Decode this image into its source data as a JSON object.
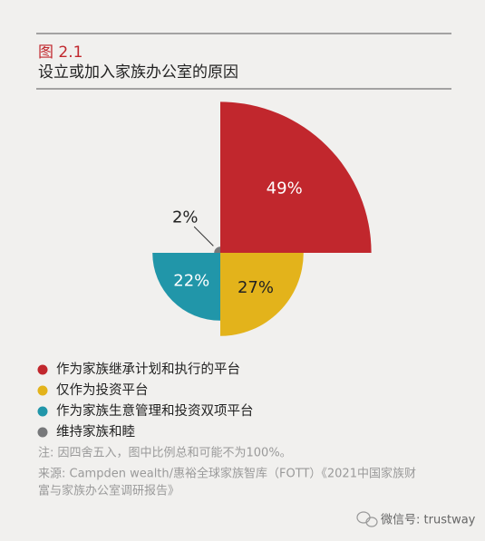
{
  "figure_label": "图 2.1",
  "chart_data": {
    "type": "rose",
    "title": "设立或加入家族办公室的原因",
    "categories": [
      "作为家族继承计划和执行的平台",
      "仅作为投资平台",
      "作为家族生意管理和投资双项平台",
      "维持家族和睦"
    ],
    "values": [
      49,
      27,
      22,
      2
    ],
    "value_labels": [
      "49%",
      "27%",
      "22%",
      "2%"
    ],
    "colors": [
      "#c1272d",
      "#e3b31b",
      "#2196a9",
      "#77787a"
    ],
    "legend": "bottom-left"
  },
  "note": "注: 因四舍五入，图中比例总和可能不为100%。",
  "source": [
    "来源: Campden wealth/惠裕全球家族智库（FOTT）《2021中国家族财",
    "富与家族办公室调研报告》"
  ],
  "watermark": "微信号: trustway"
}
